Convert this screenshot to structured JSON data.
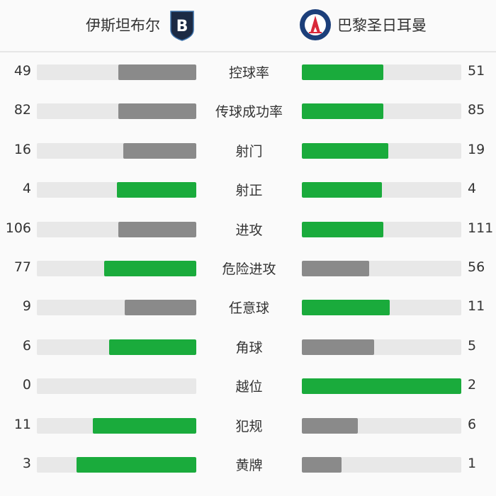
{
  "header": {
    "home_team": "伊斯坦布尔",
    "away_team": "巴黎圣日耳曼",
    "home_logo_icon": "istanbul-basaksehir-crest-icon",
    "away_logo_icon": "psg-crest-icon"
  },
  "colors": {
    "leader": "#1aab3c",
    "trailer": "#8a8a8a",
    "track": "#e8e8e8"
  },
  "stats": [
    {
      "label": "控球率",
      "home": 49,
      "away": 51
    },
    {
      "label": "传球成功率",
      "home": 82,
      "away": 85
    },
    {
      "label": "射门",
      "home": 16,
      "away": 19
    },
    {
      "label": "射正",
      "home": 4,
      "away": 4
    },
    {
      "label": "进攻",
      "home": 106,
      "away": 111
    },
    {
      "label": "危险进攻",
      "home": 77,
      "away": 56
    },
    {
      "label": "任意球",
      "home": 9,
      "away": 11
    },
    {
      "label": "角球",
      "home": 6,
      "away": 5
    },
    {
      "label": "越位",
      "home": 0,
      "away": 2
    },
    {
      "label": "犯规",
      "home": 11,
      "away": 6
    },
    {
      "label": "黄牌",
      "home": 3,
      "away": 1
    }
  ]
}
